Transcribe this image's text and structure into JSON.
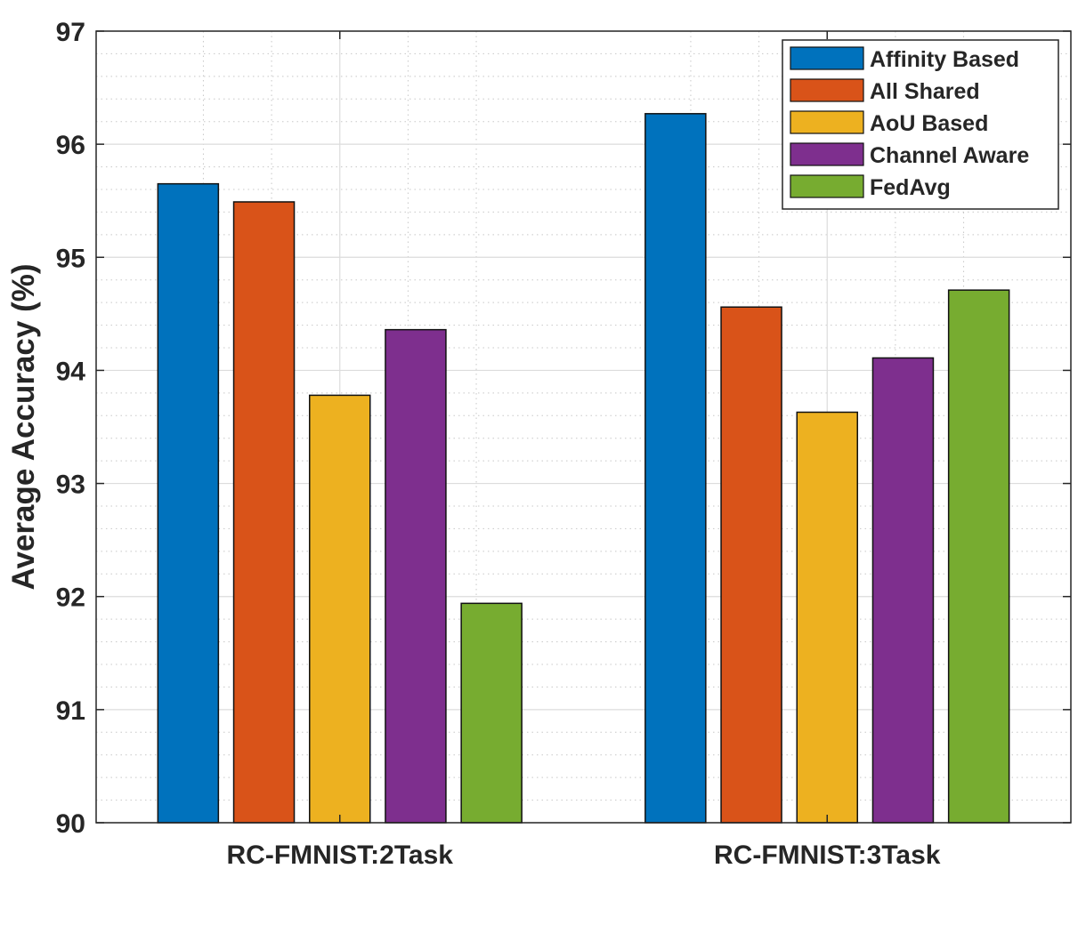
{
  "chart_data": {
    "type": "bar",
    "title": "",
    "xlabel": "",
    "ylabel": "Average Accuracy (%)",
    "ylim": [
      90,
      97
    ],
    "yticks": [
      90,
      91,
      92,
      93,
      94,
      95,
      96,
      97
    ],
    "grid": true,
    "minor_grid": true,
    "legend_position": "top-right",
    "categories": [
      "RC-FMNIST:2Task",
      "RC-FMNIST:3Task"
    ],
    "series": [
      {
        "name": "Affinity Based",
        "color": "#0072BD",
        "values": [
          95.65,
          96.27
        ]
      },
      {
        "name": "All Shared",
        "color": "#D95319",
        "values": [
          95.49,
          94.56
        ]
      },
      {
        "name": "AoU Based",
        "color": "#EDB120",
        "values": [
          93.78,
          93.63
        ]
      },
      {
        "name": "Channel Aware",
        "color": "#7E2F8E",
        "values": [
          94.36,
          94.11
        ]
      },
      {
        "name": "FedAvg",
        "color": "#77AC30",
        "values": [
          91.94,
          94.71
        ]
      }
    ]
  }
}
